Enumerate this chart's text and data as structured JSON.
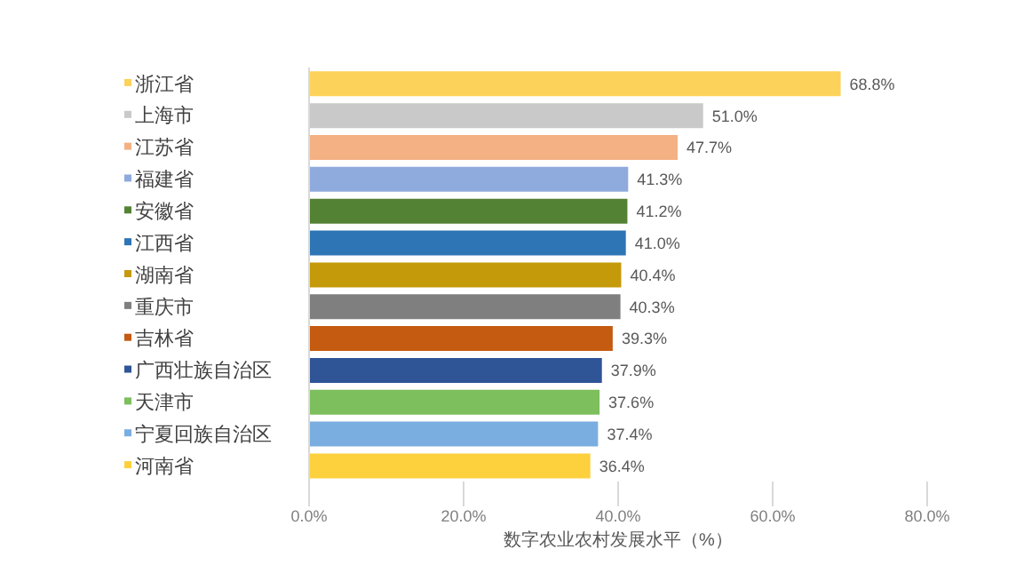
{
  "chart_data": {
    "type": "bar",
    "orientation": "horizontal",
    "xlabel": "数字农业农村发展水平（%）",
    "categories": [
      "浙江省",
      "上海市",
      "江苏省",
      "福建省",
      "安徽省",
      "江西省",
      "湖南省",
      "重庆市",
      "吉林省",
      "广西壮族自治区",
      "天津市",
      "宁夏回族自治区",
      "河南省"
    ],
    "values": [
      68.8,
      51.0,
      47.7,
      41.3,
      41.2,
      41.0,
      40.4,
      40.3,
      39.3,
      37.9,
      37.6,
      37.4,
      36.4
    ],
    "value_labels": [
      "68.8%",
      "51.0%",
      "47.7%",
      "41.3%",
      "41.2%",
      "41.0%",
      "40.4%",
      "40.3%",
      "39.3%",
      "37.9%",
      "37.6%",
      "37.4%",
      "36.4%"
    ],
    "colors": [
      "#fdd25a",
      "#c9c9c9",
      "#f4b183",
      "#8faadc",
      "#548235",
      "#2e75b6",
      "#c59a0a",
      "#7f7f7f",
      "#c55a11",
      "#2f5597",
      "#7cbf5c",
      "#7aaee0",
      "#fdd03e"
    ],
    "xlim": [
      0,
      80
    ],
    "xticks": [
      {
        "value": 0,
        "label": "0.0%"
      },
      {
        "value": 20,
        "label": "20.0%"
      },
      {
        "value": 40,
        "label": "40.0%"
      },
      {
        "value": 60,
        "label": "60.0%"
      },
      {
        "value": 80,
        "label": "80.0%"
      }
    ],
    "grid": false
  }
}
